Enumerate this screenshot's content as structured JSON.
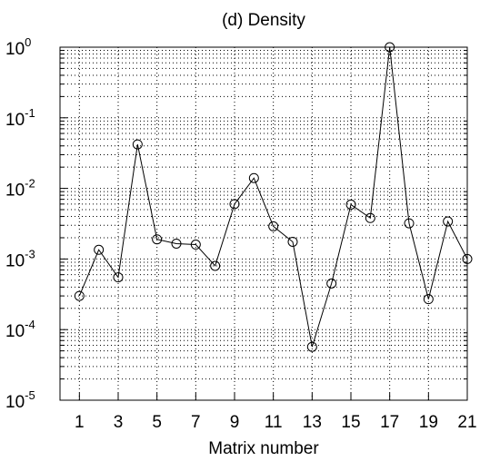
{
  "chart_data": {
    "type": "line",
    "title": "(d) Density",
    "x_label": "Matrix number",
    "x": [
      1,
      2,
      3,
      4,
      5,
      6,
      7,
      8,
      9,
      10,
      11,
      12,
      13,
      14,
      15,
      16,
      17,
      18,
      19,
      20,
      21
    ],
    "series": [
      {
        "color": "#000000",
        "marker": "circle",
        "values": [
          0.0003,
          0.00135,
          0.00055,
          0.042,
          0.0019,
          0.00165,
          0.0016,
          0.0008,
          0.006,
          0.014,
          0.0029,
          0.00175,
          5.7e-05,
          0.00045,
          0.0059,
          0.0038,
          1,
          0.0032,
          0.00027,
          0.0034,
          0.001
        ]
      }
    ],
    "xlim": [
      0,
      21
    ],
    "xticks": [
      1,
      3,
      5,
      7,
      9,
      11,
      13,
      15,
      17,
      19,
      21
    ],
    "ylim": [
      1e-05,
      1
    ],
    "log_y": true,
    "yticks": [
      {
        "value": 1e-05,
        "label": "10^-5"
      },
      {
        "value": 0.0001,
        "label": "10^-4"
      },
      {
        "value": 0.001,
        "label": "10^-3"
      },
      {
        "value": 0.01,
        "label": "10^-2"
      },
      {
        "value": 0.1,
        "label": "10^-1"
      },
      {
        "value": 1,
        "label": "10^0"
      }
    ],
    "grid": true
  }
}
